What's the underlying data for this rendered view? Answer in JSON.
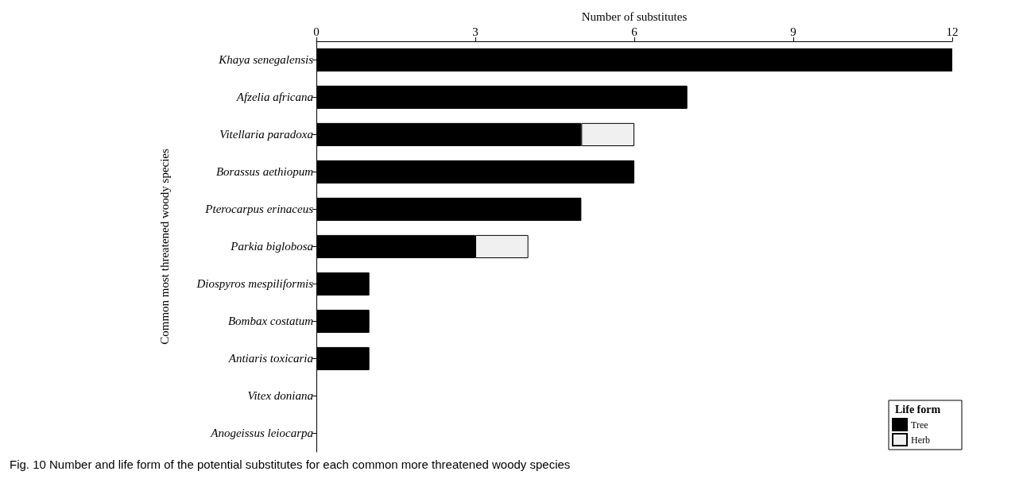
{
  "chart_data": {
    "type": "bar",
    "orientation": "horizontal",
    "stacked": true,
    "xlabel": "Number of substitutes",
    "ylabel": "Common most threatened woody species",
    "legend_title": "Life form",
    "categories": [
      "Khaya senegalensis",
      "Afzelia africana",
      "Vitellaria paradoxa",
      "Borassus aethiopum",
      "Pterocarpus erinaceus",
      "Parkia biglobosa",
      "Diospyros mespiliformis",
      "Bombax costatum",
      "Antiaris toxicaria",
      "Vitex doniana",
      "Anogeissus leiocarpa"
    ],
    "series": [
      {
        "name": "Tree",
        "color": "#000000",
        "values": [
          12,
          7,
          5,
          6,
          5,
          3,
          1,
          1,
          1,
          0,
          0
        ]
      },
      {
        "name": "Herb",
        "color": "#f0f0f0",
        "values": [
          0,
          0,
          1,
          0,
          0,
          1,
          0,
          0,
          0,
          0,
          0
        ]
      }
    ],
    "xlim": [
      0,
      12
    ],
    "xticks": [
      0,
      3,
      6,
      9,
      12
    ],
    "grid": false,
    "legend": "bottom right",
    "annotations": [
      "Fig. 10 Number and life form of the potential substitutes for each common more threatened woody species"
    ]
  }
}
